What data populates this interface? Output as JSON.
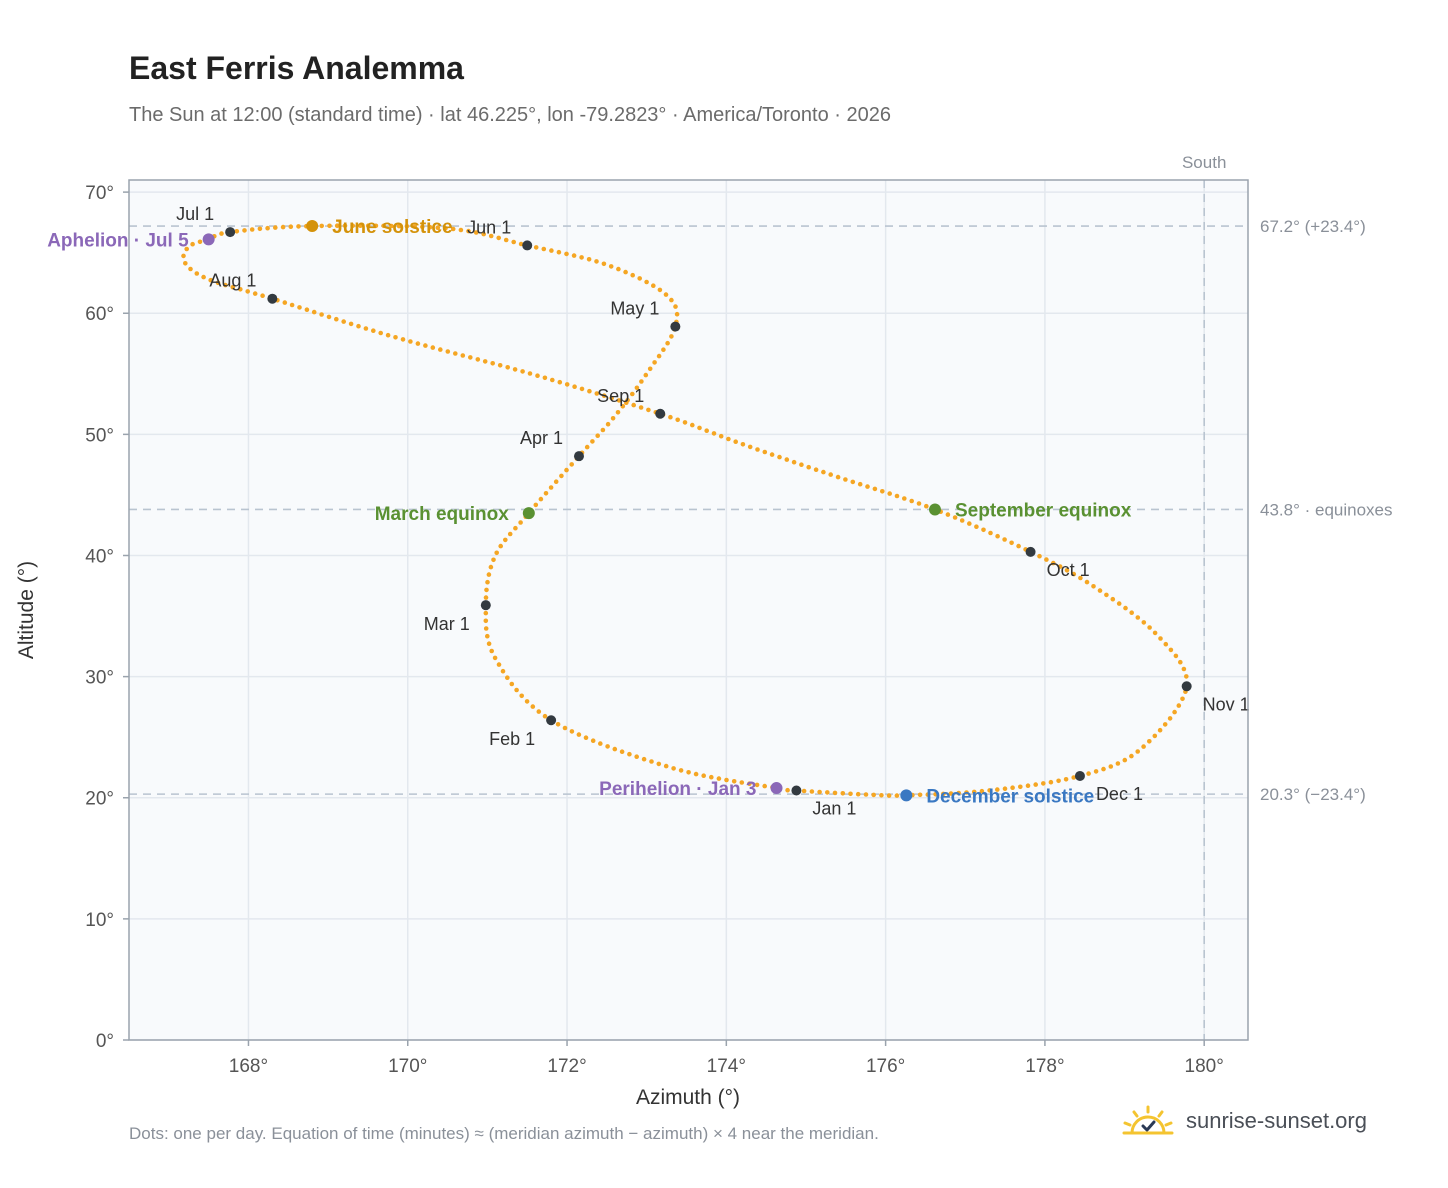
{
  "header": {
    "title": "East Ferris Analemma",
    "subtitle": "The Sun at 12:00 (standard time) · lat 46.225°, lon -79.2823° · America/Toronto · 2026"
  },
  "footer": {
    "note": "Dots: one per day. Equation of time (minutes) ≈ (meridian azimuth − azimuth) × 4 near the meridian.",
    "brand": "sunrise-sunset.org"
  },
  "colors": {
    "curve": "#f5a623",
    "month_marker": "#333a40",
    "solstice_june": "#d4920a",
    "solstice_december": "#3a78c2",
    "equinox": "#5a9132",
    "apsis": "#8b68b8",
    "reference_line": "#b9c4d0",
    "plot_bg": "#f8fafc",
    "grid": "#e3e8ee"
  },
  "chart_data": {
    "type": "scatter",
    "xlabel": "Azimuth (°)",
    "ylabel": "Altitude (°)",
    "xlim": [
      166.5,
      180.55
    ],
    "ylim": [
      0,
      71
    ],
    "x_ticks": [
      168,
      170,
      172,
      174,
      176,
      178,
      180
    ],
    "y_ticks": [
      0,
      10,
      20,
      30,
      40,
      50,
      60,
      70
    ],
    "grid": true,
    "unit_suffix": "°",
    "south_line": {
      "azimuth": 180,
      "label": "South"
    },
    "reference_lines": [
      {
        "altitude": 67.2,
        "label": "67.2° (+23.4°)"
      },
      {
        "altitude": 43.8,
        "label": "43.8° · equinoxes"
      },
      {
        "altitude": 20.3,
        "label": "20.3° (−23.4°)"
      }
    ],
    "path_points": [
      [
        174.88,
        20.6
      ],
      [
        175.8,
        20.25
      ],
      [
        176.26,
        20.2
      ],
      [
        177.3,
        20.6
      ],
      [
        178.44,
        21.8
      ],
      [
        179.2,
        24.0
      ],
      [
        179.78,
        29.2
      ],
      [
        179.4,
        33.5
      ],
      [
        178.6,
        37.5
      ],
      [
        177.82,
        40.3
      ],
      [
        176.62,
        43.8
      ],
      [
        175.3,
        46.7
      ],
      [
        174.2,
        49.2
      ],
      [
        173.17,
        51.7
      ],
      [
        171.6,
        54.9
      ],
      [
        169.8,
        58.1
      ],
      [
        168.3,
        61.2
      ],
      [
        167.5,
        62.8
      ],
      [
        167.2,
        64.2
      ],
      [
        167.25,
        65.5
      ],
      [
        167.5,
        66.1
      ],
      [
        167.77,
        66.7
      ],
      [
        168.8,
        67.2
      ],
      [
        170.5,
        67.0
      ],
      [
        171.5,
        65.6
      ],
      [
        172.5,
        64.0
      ],
      [
        173.25,
        61.5
      ],
      [
        173.36,
        58.9
      ],
      [
        173.0,
        55.0
      ],
      [
        172.6,
        51.5
      ],
      [
        172.15,
        48.2
      ],
      [
        171.52,
        43.5
      ],
      [
        171.1,
        40.0
      ],
      [
        170.98,
        35.9
      ],
      [
        171.1,
        31.5
      ],
      [
        171.8,
        26.4
      ],
      [
        173.3,
        22.5
      ],
      [
        174.63,
        20.8
      ],
      [
        174.88,
        20.6
      ]
    ],
    "month_markers": [
      {
        "label": "Jan 1",
        "azimuth": 174.88,
        "altitude": 20.6,
        "anchor": "below-right"
      },
      {
        "label": "Feb 1",
        "azimuth": 171.8,
        "altitude": 26.4,
        "anchor": "below-left"
      },
      {
        "label": "Mar 1",
        "azimuth": 170.98,
        "altitude": 35.9,
        "anchor": "below-left"
      },
      {
        "label": "Apr 1",
        "azimuth": 172.15,
        "altitude": 48.2,
        "anchor": "above-left"
      },
      {
        "label": "May 1",
        "azimuth": 173.36,
        "altitude": 58.9,
        "anchor": "above-left"
      },
      {
        "label": "Jun 1",
        "azimuth": 171.5,
        "altitude": 65.6,
        "anchor": "above-left"
      },
      {
        "label": "Jul 1",
        "azimuth": 167.77,
        "altitude": 66.7,
        "anchor": "above-left"
      },
      {
        "label": "Aug 1",
        "azimuth": 168.3,
        "altitude": 61.2,
        "anchor": "above-left"
      },
      {
        "label": "Sep 1",
        "azimuth": 173.17,
        "altitude": 51.7,
        "anchor": "above-left"
      },
      {
        "label": "Oct 1",
        "azimuth": 177.82,
        "altitude": 40.3,
        "anchor": "below-right"
      },
      {
        "label": "Nov 1",
        "azimuth": 179.78,
        "altitude": 29.2,
        "anchor": "below-right"
      },
      {
        "label": "Dec 1",
        "azimuth": 178.44,
        "altitude": 21.8,
        "anchor": "below-right"
      }
    ],
    "events": [
      {
        "label": "June solstice",
        "azimuth": 168.8,
        "altitude": 67.2,
        "color": "#d4920a",
        "side": "right"
      },
      {
        "label": "December solstice",
        "azimuth": 176.26,
        "altitude": 20.2,
        "color": "#3a78c2",
        "side": "right"
      },
      {
        "label": "March equinox",
        "azimuth": 171.52,
        "altitude": 43.5,
        "color": "#5a9132",
        "side": "left"
      },
      {
        "label": "September equinox",
        "azimuth": 176.62,
        "altitude": 43.8,
        "color": "#5a9132",
        "side": "right"
      },
      {
        "label": "Aphelion · Jul 5",
        "azimuth": 167.5,
        "altitude": 66.1,
        "color": "#8b68b8",
        "side": "left"
      },
      {
        "label": "Perihelion · Jan 3",
        "azimuth": 174.63,
        "altitude": 20.8,
        "color": "#8b68b8",
        "side": "left"
      }
    ]
  }
}
